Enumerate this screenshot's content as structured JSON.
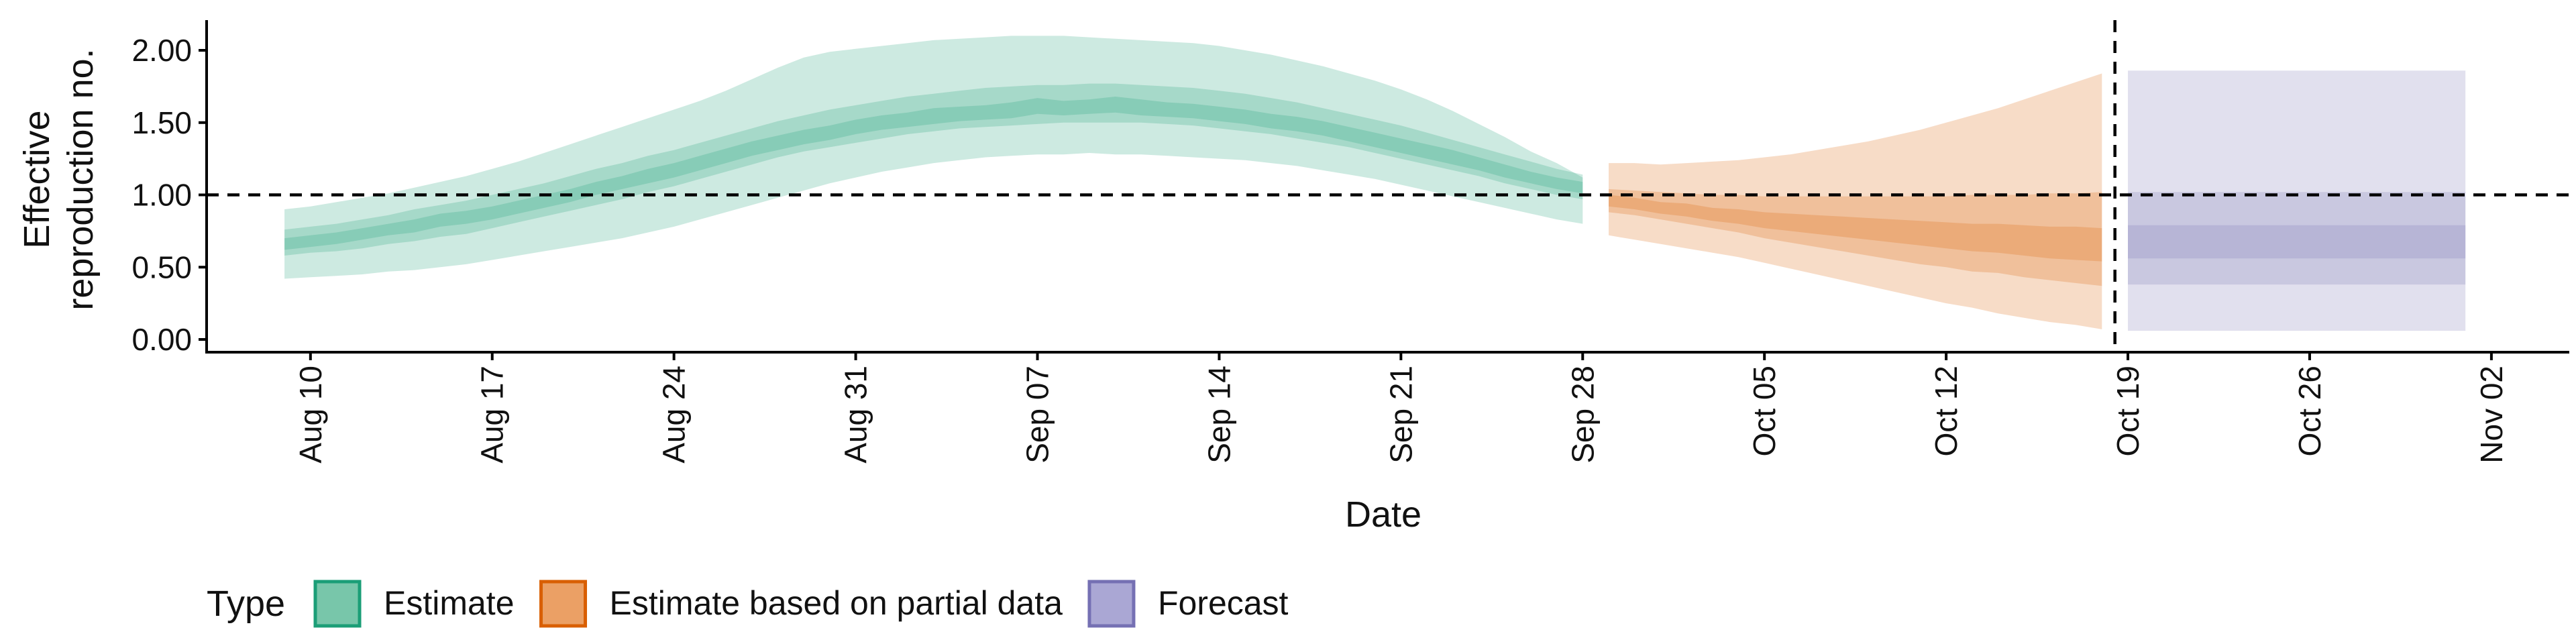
{
  "chart_data": {
    "type": "area",
    "xlabel": "Date",
    "ylabel_lines": [
      "Effective",
      "reproduction no."
    ],
    "ylim": [
      0,
      2.2
    ],
    "y_ticks": [
      0,
      0.5,
      1,
      1.5,
      2
    ],
    "y_tick_labels": [
      "0.00",
      "0.50",
      "1.00",
      "1.50",
      "2.00"
    ],
    "x_range": [
      "2021-08-06",
      "2021-11-05"
    ],
    "x_tick_dates": [
      "2021-08-10",
      "2021-08-17",
      "2021-08-24",
      "2021-08-31",
      "2021-09-07",
      "2021-09-14",
      "2021-09-21",
      "2021-09-28",
      "2021-10-05",
      "2021-10-12",
      "2021-10-19",
      "2021-10-26",
      "2021-11-02"
    ],
    "x_tick_labels": [
      "Aug 10",
      "Aug 17",
      "Aug 24",
      "Aug 31",
      "Sep 07",
      "Sep 14",
      "Sep 21",
      "Sep 28",
      "Oct 05",
      "Oct 12",
      "Oct 19",
      "Oct 26",
      "Nov 02"
    ],
    "reference_line_y": 1,
    "vertical_line_x": "2021-10-18",
    "grid": false,
    "legend_position": "bottom-left",
    "legend_title": "Type",
    "series": [
      {
        "name": "Estimate",
        "color": "#1b9e77",
        "x": [
          "2021-08-09",
          "2021-08-10",
          "2021-08-11",
          "2021-08-12",
          "2021-08-13",
          "2021-08-14",
          "2021-08-15",
          "2021-08-16",
          "2021-08-17",
          "2021-08-18",
          "2021-08-19",
          "2021-08-20",
          "2021-08-21",
          "2021-08-22",
          "2021-08-23",
          "2021-08-24",
          "2021-08-25",
          "2021-08-26",
          "2021-08-27",
          "2021-08-28",
          "2021-08-29",
          "2021-08-30",
          "2021-08-31",
          "2021-09-01",
          "2021-09-02",
          "2021-09-03",
          "2021-09-04",
          "2021-09-05",
          "2021-09-06",
          "2021-09-07",
          "2021-09-08",
          "2021-09-09",
          "2021-09-10",
          "2021-09-11",
          "2021-09-12",
          "2021-09-13",
          "2021-09-14",
          "2021-09-15",
          "2021-09-16",
          "2021-09-17",
          "2021-09-18",
          "2021-09-19",
          "2021-09-20",
          "2021-09-21",
          "2021-09-22",
          "2021-09-23",
          "2021-09-24",
          "2021-09-25",
          "2021-09-26",
          "2021-09-27",
          "2021-09-28"
        ],
        "lower_90": [
          0.42,
          0.43,
          0.44,
          0.45,
          0.47,
          0.48,
          0.5,
          0.52,
          0.55,
          0.58,
          0.61,
          0.64,
          0.67,
          0.7,
          0.74,
          0.78,
          0.83,
          0.88,
          0.93,
          0.98,
          1.03,
          1.08,
          1.12,
          1.16,
          1.19,
          1.22,
          1.24,
          1.26,
          1.27,
          1.28,
          1.28,
          1.29,
          1.28,
          1.28,
          1.27,
          1.26,
          1.25,
          1.24,
          1.22,
          1.2,
          1.17,
          1.14,
          1.11,
          1.07,
          1.03,
          0.99,
          0.95,
          0.91,
          0.87,
          0.83,
          0.8
        ],
        "lower_50": [
          0.58,
          0.6,
          0.61,
          0.63,
          0.66,
          0.68,
          0.71,
          0.73,
          0.77,
          0.81,
          0.85,
          0.89,
          0.93,
          0.97,
          1.02,
          1.06,
          1.11,
          1.16,
          1.21,
          1.26,
          1.3,
          1.33,
          1.36,
          1.39,
          1.42,
          1.44,
          1.46,
          1.47,
          1.48,
          1.49,
          1.5,
          1.5,
          1.5,
          1.5,
          1.49,
          1.48,
          1.46,
          1.44,
          1.42,
          1.39,
          1.36,
          1.33,
          1.29,
          1.25,
          1.21,
          1.17,
          1.13,
          1.08,
          1.04,
          1.0,
          0.97
        ],
        "lower_20": [
          0.62,
          0.64,
          0.66,
          0.69,
          0.72,
          0.74,
          0.78,
          0.8,
          0.83,
          0.87,
          0.91,
          0.95,
          1.0,
          1.04,
          1.08,
          1.12,
          1.17,
          1.22,
          1.27,
          1.31,
          1.35,
          1.38,
          1.42,
          1.45,
          1.47,
          1.49,
          1.51,
          1.52,
          1.53,
          1.56,
          1.55,
          1.56,
          1.57,
          1.55,
          1.54,
          1.53,
          1.51,
          1.49,
          1.46,
          1.44,
          1.41,
          1.37,
          1.33,
          1.29,
          1.25,
          1.21,
          1.17,
          1.12,
          1.08,
          1.04,
          1.01
        ],
        "upper_20": [
          0.7,
          0.72,
          0.74,
          0.77,
          0.8,
          0.83,
          0.87,
          0.89,
          0.92,
          0.96,
          1.0,
          1.04,
          1.09,
          1.13,
          1.18,
          1.22,
          1.27,
          1.32,
          1.37,
          1.41,
          1.45,
          1.48,
          1.52,
          1.55,
          1.57,
          1.6,
          1.61,
          1.62,
          1.64,
          1.67,
          1.65,
          1.66,
          1.68,
          1.66,
          1.64,
          1.63,
          1.61,
          1.59,
          1.56,
          1.54,
          1.51,
          1.47,
          1.43,
          1.39,
          1.35,
          1.31,
          1.26,
          1.21,
          1.16,
          1.12,
          1.09
        ],
        "upper_50": [
          0.76,
          0.78,
          0.8,
          0.83,
          0.86,
          0.9,
          0.93,
          0.96,
          1.0,
          1.04,
          1.08,
          1.13,
          1.18,
          1.22,
          1.27,
          1.31,
          1.36,
          1.41,
          1.46,
          1.51,
          1.55,
          1.59,
          1.62,
          1.65,
          1.68,
          1.7,
          1.72,
          1.74,
          1.75,
          1.76,
          1.76,
          1.77,
          1.77,
          1.76,
          1.75,
          1.74,
          1.72,
          1.7,
          1.67,
          1.64,
          1.6,
          1.56,
          1.52,
          1.48,
          1.43,
          1.38,
          1.33,
          1.28,
          1.23,
          1.18,
          1.14
        ],
        "upper_90": [
          0.9,
          0.92,
          0.95,
          0.98,
          1.01,
          1.05,
          1.09,
          1.13,
          1.18,
          1.23,
          1.29,
          1.35,
          1.41,
          1.47,
          1.53,
          1.59,
          1.65,
          1.72,
          1.8,
          1.88,
          1.95,
          1.99,
          2.01,
          2.03,
          2.05,
          2.07,
          2.08,
          2.09,
          2.1,
          2.1,
          2.1,
          2.09,
          2.08,
          2.07,
          2.06,
          2.05,
          2.03,
          2.0,
          1.97,
          1.93,
          1.89,
          1.84,
          1.79,
          1.73,
          1.66,
          1.58,
          1.49,
          1.4,
          1.3,
          1.22,
          1.12
        ]
      },
      {
        "name": "Estimate based on partial data",
        "color": "#d95f02",
        "x": [
          "2021-09-29",
          "2021-09-30",
          "2021-10-01",
          "2021-10-02",
          "2021-10-03",
          "2021-10-04",
          "2021-10-05",
          "2021-10-06",
          "2021-10-07",
          "2021-10-08",
          "2021-10-09",
          "2021-10-10",
          "2021-10-11",
          "2021-10-12",
          "2021-10-13",
          "2021-10-14",
          "2021-10-15",
          "2021-10-16",
          "2021-10-17",
          "2021-10-18"
        ],
        "lower_90": [
          0.72,
          0.69,
          0.66,
          0.63,
          0.6,
          0.57,
          0.53,
          0.49,
          0.45,
          0.41,
          0.37,
          0.33,
          0.29,
          0.25,
          0.22,
          0.18,
          0.15,
          0.12,
          0.1,
          0.07
        ],
        "lower_50": [
          0.88,
          0.86,
          0.83,
          0.8,
          0.77,
          0.74,
          0.7,
          0.67,
          0.64,
          0.61,
          0.58,
          0.55,
          0.52,
          0.5,
          0.47,
          0.46,
          0.43,
          0.41,
          0.39,
          0.37
        ],
        "lower_20": [
          0.92,
          0.9,
          0.87,
          0.85,
          0.82,
          0.8,
          0.77,
          0.75,
          0.73,
          0.71,
          0.69,
          0.67,
          0.65,
          0.63,
          0.61,
          0.6,
          0.58,
          0.56,
          0.55,
          0.54
        ],
        "upper_20": [
          1.0,
          0.98,
          0.95,
          0.94,
          0.91,
          0.9,
          0.88,
          0.87,
          0.86,
          0.85,
          0.84,
          0.83,
          0.82,
          0.81,
          0.8,
          0.8,
          0.79,
          0.78,
          0.78,
          0.77
        ],
        "upper_50": [
          1.04,
          1.03,
          1.02,
          1.01,
          1.0,
          1.0,
          0.99,
          0.99,
          0.99,
          0.99,
          0.99,
          0.99,
          0.99,
          0.99,
          1.0,
          1.0,
          1.0,
          1.01,
          1.01,
          1.02
        ],
        "upper_90": [
          1.22,
          1.22,
          1.21,
          1.22,
          1.23,
          1.24,
          1.26,
          1.28,
          1.31,
          1.34,
          1.37,
          1.41,
          1.45,
          1.5,
          1.55,
          1.6,
          1.66,
          1.72,
          1.78,
          1.84
        ]
      },
      {
        "name": "Forecast",
        "color": "#7570b3",
        "x": [
          "2021-10-19",
          "2021-11-01"
        ],
        "lower_90": [
          0.06,
          0.06
        ],
        "lower_50": [
          0.38,
          0.38
        ],
        "lower_20": [
          0.56,
          0.56
        ],
        "upper_20": [
          0.79,
          0.79
        ],
        "upper_50": [
          1.02,
          1.02
        ],
        "upper_90": [
          1.86,
          1.86
        ]
      }
    ]
  }
}
